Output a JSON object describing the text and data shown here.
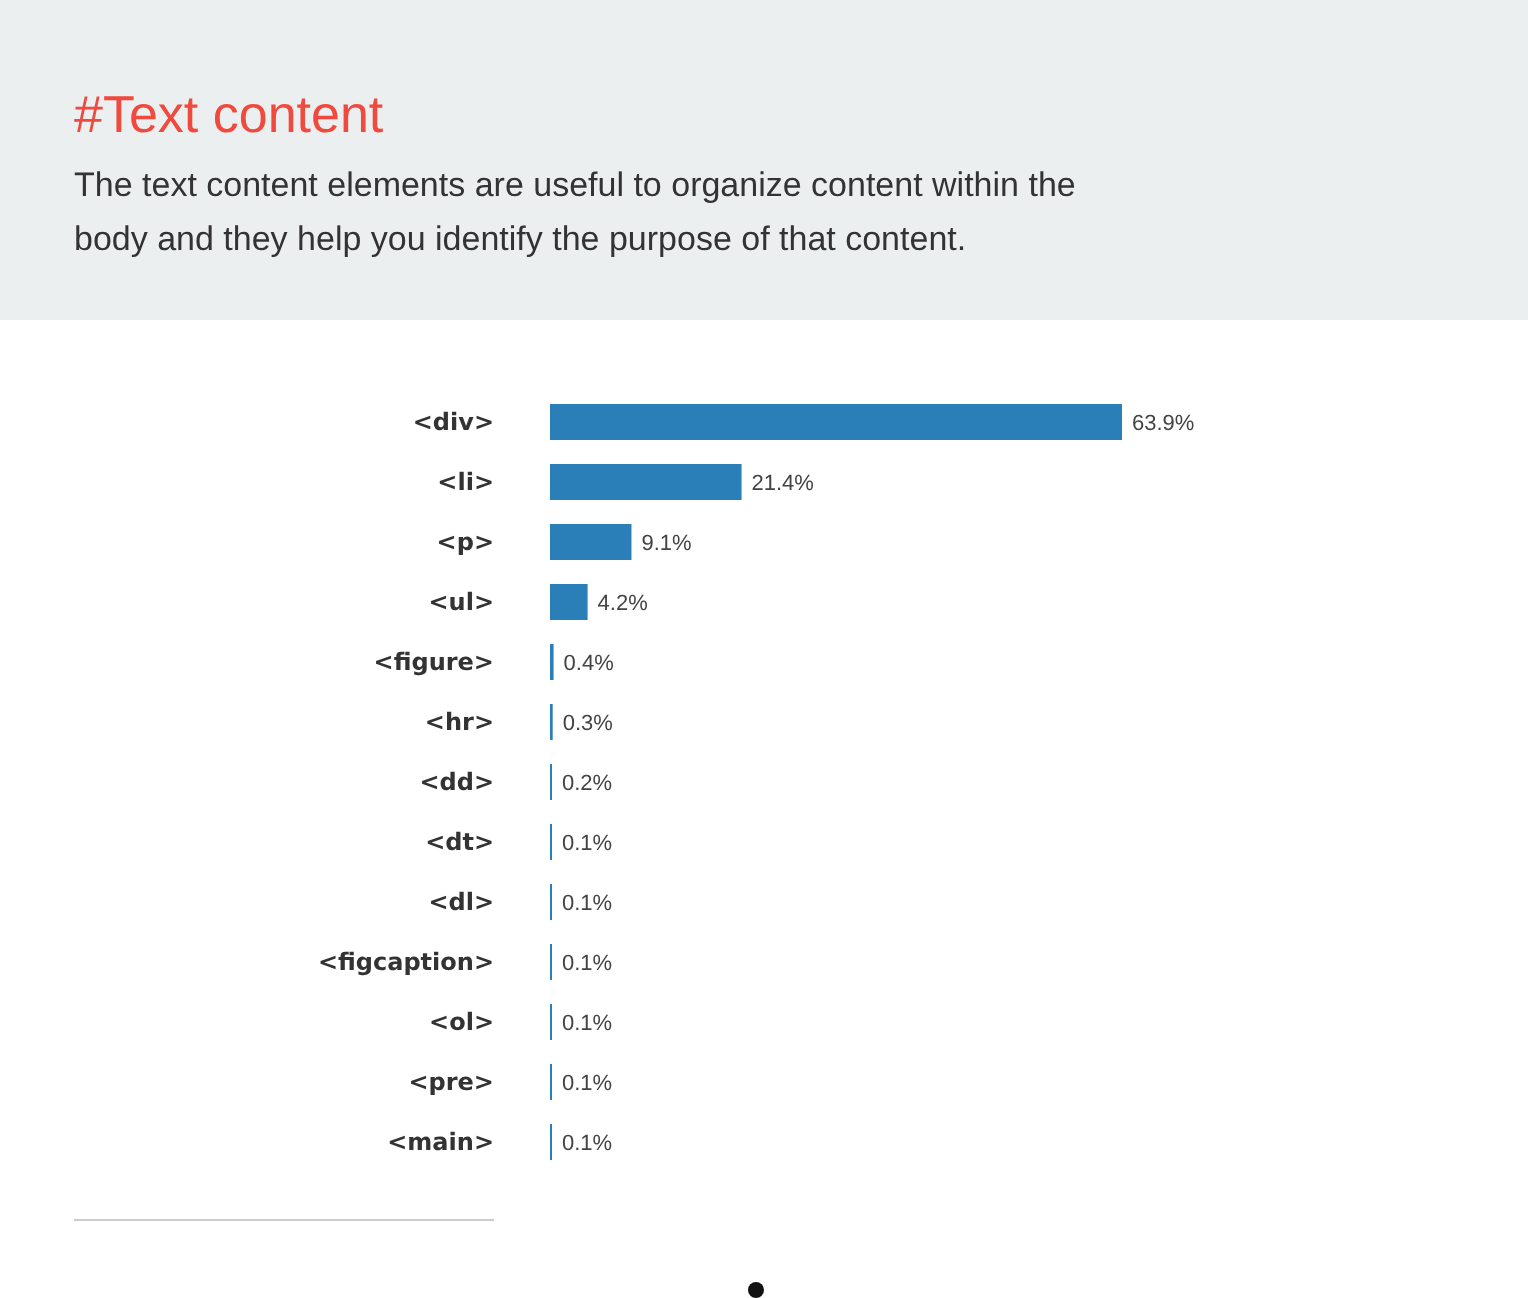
{
  "chart_data": {
    "type": "bar",
    "orientation": "horizontal",
    "title": "#Text content",
    "subtitle": "The text content elements are useful to organize content within the body and they help you identify the purpose of that content.",
    "categories": [
      "<div>",
      "<li>",
      "<p>",
      "<ul>",
      "<figure>",
      "<hr>",
      "<dd>",
      "<dt>",
      "<dl>",
      "<figcaption>",
      "<ol>",
      "<pre>",
      "<main>"
    ],
    "values": [
      63.9,
      21.4,
      9.1,
      4.2,
      0.4,
      0.3,
      0.2,
      0.1,
      0.1,
      0.1,
      0.1,
      0.1,
      0.1
    ],
    "value_labels": [
      "63.9%",
      "21.4%",
      "9.1%",
      "4.2%",
      "0.4%",
      "0.3%",
      "0.2%",
      "0.1%",
      "0.1%",
      "0.1%",
      "0.1%",
      "0.1%",
      "0.1%"
    ],
    "color": "#2b7fb8"
  }
}
